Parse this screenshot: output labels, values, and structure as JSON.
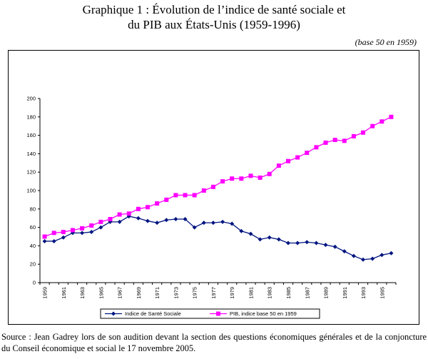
{
  "header": {
    "title_line1": "Graphique 1 : Évolution de l’indice de santé sociale et",
    "title_line2": "du PIB aux États-Unis (1959-1996)",
    "base_note": "(base 50 en 1959)"
  },
  "source": {
    "text": "Source : Jean Gadrey lors de son audition devant la section des questions économiques générales et de la conjoncture du Conseil économique et social le 17 novembre 2005."
  },
  "colors": {
    "series1": "#001580",
    "series2": "#ff00ff",
    "axis": "#000000",
    "gridline": "#000000"
  },
  "chart_data": {
    "type": "line",
    "title": "",
    "xlabel": "",
    "ylabel": "",
    "grid": false,
    "legend_position": "bottom",
    "ylim": [
      0,
      200
    ],
    "yticks": [
      0,
      20,
      40,
      60,
      80,
      100,
      120,
      140,
      160,
      180,
      200
    ],
    "x": [
      1959,
      1960,
      1961,
      1962,
      1963,
      1964,
      1965,
      1966,
      1967,
      1968,
      1969,
      1970,
      1971,
      1972,
      1973,
      1974,
      1975,
      1976,
      1977,
      1978,
      1979,
      1980,
      1981,
      1982,
      1983,
      1984,
      1985,
      1986,
      1987,
      1988,
      1989,
      1990,
      1991,
      1992,
      1993,
      1994,
      1995,
      1996
    ],
    "xtick_labels": [
      "1959",
      "1961",
      "1963",
      "1965",
      "1967",
      "1969",
      "1971",
      "1973",
      "1975",
      "1977",
      "1979",
      "1981",
      "1983",
      "1985",
      "1987",
      "1989",
      "1991",
      "1993",
      "1995"
    ],
    "series": [
      {
        "name": "Indice de Santé Sociale",
        "marker": "diamond",
        "values": [
          45,
          45,
          49,
          54,
          54,
          55,
          60,
          66,
          66,
          72,
          70,
          67,
          65,
          68,
          69,
          69,
          60,
          65,
          65,
          66,
          64,
          56,
          53,
          47,
          49,
          47,
          43,
          43,
          44,
          43,
          41,
          39,
          34,
          29,
          25,
          26,
          30,
          32
        ]
      },
      {
        "name": "PIB, indice base 50 en 1959",
        "marker": "square",
        "values": [
          50,
          54,
          55,
          57,
          59,
          62,
          66,
          69,
          74,
          75,
          80,
          82,
          86,
          90,
          95,
          95,
          95,
          100,
          104,
          110,
          113,
          113,
          116,
          114,
          118,
          127,
          132,
          136,
          141,
          147,
          152,
          155,
          154,
          159,
          163,
          170,
          175,
          180
        ]
      }
    ]
  }
}
